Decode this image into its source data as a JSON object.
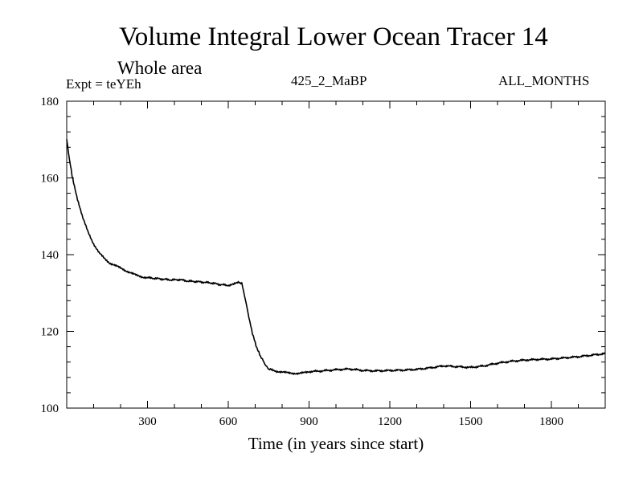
{
  "chart_data": {
    "type": "line",
    "title": "Volume Integral Lower Ocean Tracer 14",
    "subtitle": "Whole area",
    "expt_label": "Expt = teYEh",
    "experiment_name": "425_2_MaBP",
    "months_label": "ALL_MONTHS",
    "xlabel": "Time (in years since start)",
    "ylabel": "",
    "xlim": [
      0,
      2000
    ],
    "ylim": [
      100,
      180
    ],
    "x_ticks": [
      300,
      600,
      900,
      1200,
      1500,
      1800
    ],
    "y_ticks": [
      100,
      120,
      140,
      160,
      180
    ],
    "grid": false,
    "series": [
      {
        "name": "Lower Ocean Tracer 14",
        "x": [
          0,
          10,
          20,
          40,
          60,
          80,
          100,
          120,
          140,
          160,
          180,
          200,
          220,
          240,
          260,
          280,
          300,
          330,
          360,
          390,
          420,
          450,
          480,
          510,
          540,
          570,
          600,
          620,
          640,
          650,
          660,
          670,
          680,
          690,
          700,
          710,
          720,
          730,
          740,
          750,
          760,
          780,
          800,
          820,
          840,
          860,
          880,
          900,
          950,
          1000,
          1050,
          1100,
          1150,
          1200,
          1250,
          1300,
          1350,
          1400,
          1450,
          1500,
          1550,
          1600,
          1650,
          1700,
          1750,
          1800,
          1850,
          1900,
          1950,
          2000
        ],
        "values": [
          170,
          165,
          160.5,
          154.5,
          149.5,
          145.8,
          142.8,
          140.5,
          139,
          137.8,
          137.2,
          136.5,
          135.8,
          135.2,
          134.6,
          134.2,
          134,
          133.8,
          133.6,
          133.4,
          133.5,
          133.1,
          133,
          132.8,
          132.6,
          132.2,
          132,
          132.3,
          132.8,
          132.5,
          129.5,
          126,
          122.5,
          119.5,
          117,
          115,
          113.5,
          112.3,
          111,
          110.2,
          110,
          109.6,
          109.4,
          109.2,
          109.1,
          109,
          109.2,
          109.5,
          109.7,
          110,
          110.2,
          109.8,
          109.7,
          109.8,
          109.9,
          110.1,
          110.5,
          111,
          110.8,
          110.6,
          111,
          111.7,
          112.2,
          112.5,
          112.7,
          112.8,
          113.1,
          113.4,
          113.8,
          114.2
        ]
      }
    ]
  }
}
